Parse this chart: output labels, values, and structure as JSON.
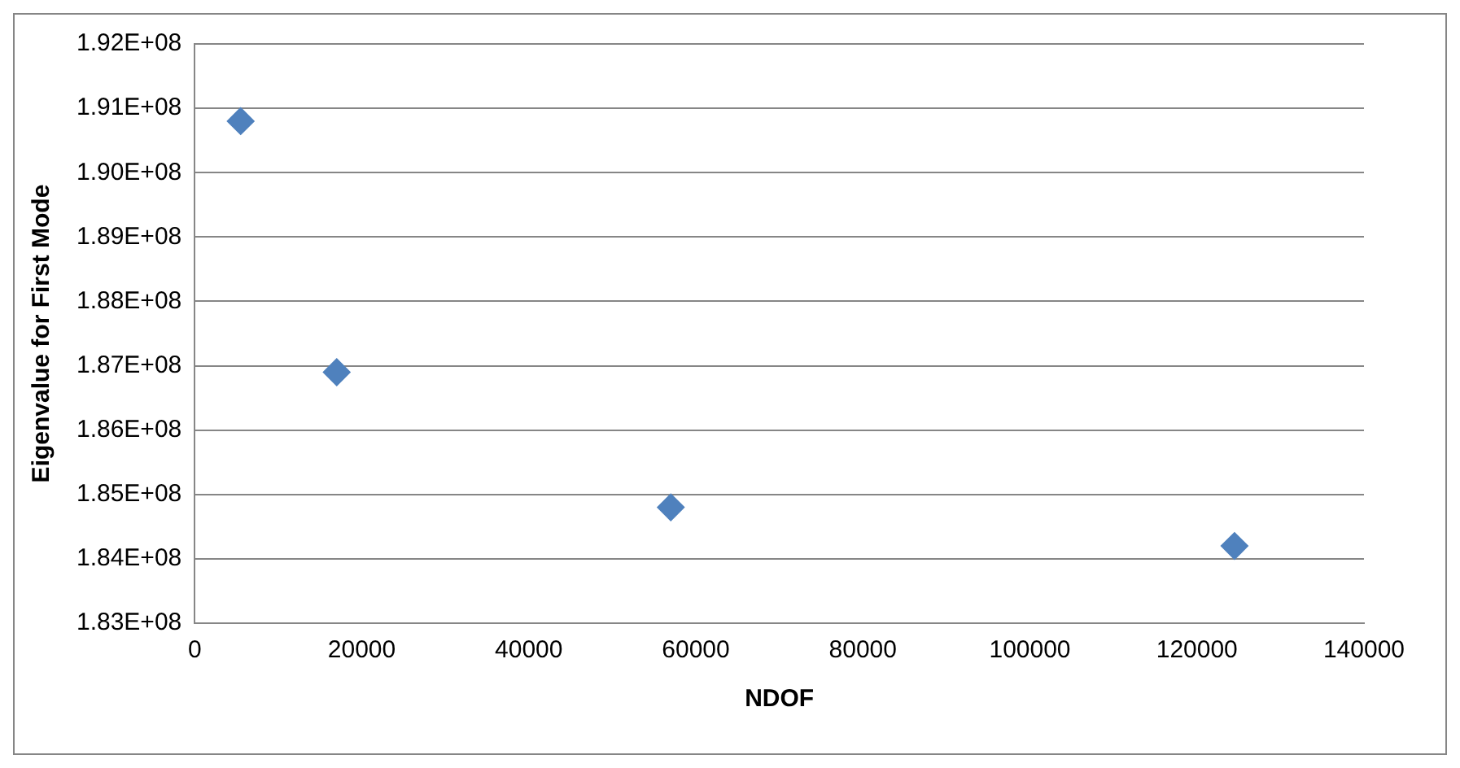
{
  "chart_data": {
    "type": "scatter",
    "xlabel": "NDOF",
    "ylabel": "Eigenvalue for First Mode",
    "x": [
      5500,
      17000,
      57000,
      124500
    ],
    "series": [
      {
        "color": "#4f81bd",
        "values": [
          190800000,
          186900000,
          184800000,
          184200000
        ]
      }
    ],
    "marker": "diamond",
    "grid": "y",
    "legend": false,
    "xlim": [
      0,
      140000
    ],
    "xticks": [
      0,
      20000,
      40000,
      60000,
      80000,
      100000,
      120000,
      140000
    ],
    "ylim": [
      183000000,
      192000000
    ],
    "yticks": [
      {
        "value": 183000000,
        "label": "1.83E+08"
      },
      {
        "value": 184000000,
        "label": "1.84E+08"
      },
      {
        "value": 185000000,
        "label": "1.85E+08"
      },
      {
        "value": 186000000,
        "label": "1.86E+08"
      },
      {
        "value": 187000000,
        "label": "1.87E+08"
      },
      {
        "value": 188000000,
        "label": "1.88E+08"
      },
      {
        "value": 189000000,
        "label": "1.89E+08"
      },
      {
        "value": 190000000,
        "label": "1.90E+08"
      },
      {
        "value": 191000000,
        "label": "1.91E+08"
      },
      {
        "value": 192000000,
        "label": "1.92E+08"
      }
    ]
  }
}
